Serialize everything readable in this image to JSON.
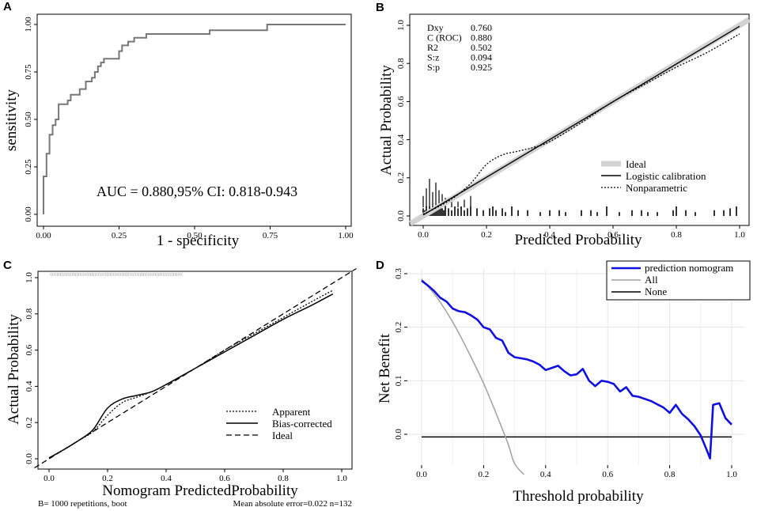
{
  "chart_data": [
    {
      "panel": "A",
      "type": "line",
      "title": "",
      "xlabel": "1 - specificity",
      "ylabel": "sensitivity",
      "xlim": [
        0,
        1
      ],
      "ylim": [
        0,
        1
      ],
      "xticks": [
        "0.00",
        "0.25",
        "0.50",
        "0.75",
        "1.00"
      ],
      "yticks": [
        "0.00",
        "0.25",
        "0.50",
        "0.75",
        "1.00"
      ],
      "annotation": "AUC = 0.880,95% CI: 0.818-0.943",
      "series": [
        {
          "name": "ROC",
          "color": "#777777",
          "x": [
            0,
            0,
            0.01,
            0.01,
            0.02,
            0.02,
            0.03,
            0.03,
            0.04,
            0.04,
            0.05,
            0.05,
            0.08,
            0.08,
            0.09,
            0.09,
            0.12,
            0.12,
            0.14,
            0.14,
            0.16,
            0.16,
            0.17,
            0.17,
            0.18,
            0.18,
            0.19,
            0.19,
            0.2,
            0.2,
            0.25,
            0.25,
            0.26,
            0.26,
            0.28,
            0.28,
            0.3,
            0.3,
            0.34,
            0.34,
            0.55,
            0.55,
            0.74,
            0.74,
            1
          ],
          "y": [
            0,
            0.2,
            0.2,
            0.32,
            0.32,
            0.42,
            0.42,
            0.47,
            0.47,
            0.5,
            0.5,
            0.58,
            0.58,
            0.6,
            0.6,
            0.63,
            0.63,
            0.66,
            0.66,
            0.7,
            0.7,
            0.72,
            0.72,
            0.75,
            0.75,
            0.78,
            0.78,
            0.8,
            0.8,
            0.82,
            0.82,
            0.86,
            0.86,
            0.89,
            0.89,
            0.91,
            0.91,
            0.93,
            0.93,
            0.95,
            0.95,
            0.97,
            0.97,
            1,
            1
          ]
        }
      ]
    },
    {
      "panel": "B",
      "type": "line",
      "xlabel": "Predicted Probability",
      "ylabel": "Actual Probability",
      "xlim": [
        0,
        1
      ],
      "ylim": [
        0,
        1
      ],
      "xticks": [
        "0.0",
        "0.2",
        "0.4",
        "0.6",
        "0.8",
        "1.0"
      ],
      "yticks": [
        "0.0",
        "0.2",
        "0.4",
        "0.6",
        "0.8",
        "1.0"
      ],
      "stats": [
        {
          "label": "Dxy",
          "value": "0.760"
        },
        {
          "label": "C (ROC)",
          "value": "0.880"
        },
        {
          "label": "R2",
          "value": "0.502"
        },
        {
          "label": "S:z",
          "value": "0.094"
        },
        {
          "label": "S:p",
          "value": "0.925"
        }
      ],
      "legend": [
        "Ideal",
        "Logistic calibration",
        "Nonparametric"
      ],
      "series": [
        {
          "name": "Ideal",
          "x": [
            0,
            1
          ],
          "y": [
            0,
            1
          ]
        },
        {
          "name": "Logistic calibration",
          "x": [
            0,
            1
          ],
          "y": [
            0.005,
            0.995
          ]
        },
        {
          "name": "Nonparametric",
          "x": [
            0,
            0.05,
            0.1,
            0.15,
            0.2,
            0.25,
            0.3,
            0.35,
            0.4,
            0.5,
            0.6,
            0.7,
            0.8,
            0.9,
            1.0
          ],
          "y": [
            0.01,
            0.05,
            0.1,
            0.17,
            0.27,
            0.32,
            0.34,
            0.36,
            0.39,
            0.49,
            0.6,
            0.69,
            0.78,
            0.86,
            0.955
          ]
        }
      ],
      "rug_top": [
        0.0,
        0.01,
        0.02,
        0.03,
        0.04,
        0.05,
        0.06,
        0.07,
        0.09,
        0.11,
        0.13,
        0.15
      ],
      "rug_top_heights": [
        0.06,
        0.1,
        0.15,
        0.08,
        0.13,
        0.09,
        0.07,
        0.05,
        0.04,
        0.03,
        0.04,
        0.06
      ],
      "rug_bottom": [
        0.0,
        0.005,
        0.01,
        0.015,
        0.02,
        0.025,
        0.03,
        0.035,
        0.04,
        0.045,
        0.05,
        0.055,
        0.06,
        0.065,
        0.07,
        0.08,
        0.09,
        0.1,
        0.11,
        0.12,
        0.13,
        0.14,
        0.15,
        0.17,
        0.19,
        0.21,
        0.22,
        0.23,
        0.25,
        0.26,
        0.28,
        0.3,
        0.33,
        0.37,
        0.4,
        0.43,
        0.45,
        0.5,
        0.53,
        0.55,
        0.58,
        0.62,
        0.66,
        0.69,
        0.71,
        0.74,
        0.79,
        0.8,
        0.83,
        0.86,
        0.92,
        0.95,
        0.97,
        0.99
      ],
      "rug_bottom_heights": [
        0.04,
        0.03,
        0.05,
        0.03,
        0.05,
        0.04,
        0.05,
        0.04,
        0.05,
        0.03,
        0.04,
        0.05,
        0.04,
        0.03,
        0.05,
        0.04,
        0.03,
        0.05,
        0.04,
        0.05,
        0.03,
        0.04,
        0.05,
        0.04,
        0.03,
        0.04,
        0.05,
        0.03,
        0.04,
        0.02,
        0.05,
        0.03,
        0.03,
        0.02,
        0.03,
        0.03,
        0.02,
        0.03,
        0.03,
        0.02,
        0.05,
        0.02,
        0.03,
        0.03,
        0.02,
        0.02,
        0.03,
        0.05,
        0.03,
        0.02,
        0.03,
        0.03,
        0.04,
        0.05
      ]
    },
    {
      "panel": "C",
      "type": "line",
      "xlabel": "Nomogram PredictedProbability",
      "ylabel": "Actual Probability",
      "xlim": [
        -0.05,
        1.05
      ],
      "ylim": [
        -0.03,
        1.05
      ],
      "xticks": [
        "0.0",
        "0.2",
        "0.4",
        "0.6",
        "0.8",
        "1.0"
      ],
      "yticks": [
        "0.0",
        "0.2",
        "0.4",
        "0.6",
        "0.8",
        "1.0"
      ],
      "legend": [
        "Apparent",
        "Bias-corrected",
        "Ideal"
      ],
      "footnote_left": "B= 1000 repetitions, boot",
      "footnote_right": "Mean absolute error=0.022 n=132",
      "series": [
        {
          "name": "Apparent",
          "x": [
            0,
            0.05,
            0.1,
            0.15,
            0.2,
            0.25,
            0.3,
            0.35,
            0.4,
            0.5,
            0.6,
            0.7,
            0.8,
            0.9,
            0.97
          ],
          "y": [
            0.005,
            0.05,
            0.1,
            0.15,
            0.24,
            0.31,
            0.34,
            0.37,
            0.41,
            0.5,
            0.6,
            0.69,
            0.78,
            0.87,
            0.93
          ]
        },
        {
          "name": "Bias-corrected",
          "x": [
            0,
            0.05,
            0.1,
            0.15,
            0.2,
            0.25,
            0.3,
            0.35,
            0.4,
            0.5,
            0.6,
            0.7,
            0.8,
            0.9,
            0.97
          ],
          "y": [
            0.005,
            0.05,
            0.1,
            0.16,
            0.28,
            0.33,
            0.35,
            0.37,
            0.41,
            0.5,
            0.59,
            0.68,
            0.77,
            0.85,
            0.91
          ]
        },
        {
          "name": "Ideal",
          "x": [
            -0.05,
            1.05
          ],
          "y": [
            -0.05,
            1.05
          ]
        }
      ]
    },
    {
      "panel": "D",
      "type": "line",
      "xlabel": "Threshold probability",
      "ylabel": "Net Benefit",
      "xlim": [
        -0.02,
        1.02
      ],
      "ylim": [
        -0.07,
        0.3
      ],
      "xticks": [
        "0.0",
        "0.2",
        "0.4",
        "0.6",
        "0.8",
        "1.0"
      ],
      "xtick_values": [
        0,
        0.2,
        0.4,
        0.6,
        0.8,
        1.0
      ],
      "yticks": [
        "0.0",
        "0.1",
        "0.2",
        "0.3"
      ],
      "ytick_values": [
        0,
        0.1,
        0.2,
        0.3
      ],
      "legend": [
        "prediction nomogram",
        "All",
        "None"
      ],
      "series": [
        {
          "name": "prediction nomogram",
          "color": "#1010e0",
          "x": [
            0,
            0.02,
            0.04,
            0.06,
            0.08,
            0.1,
            0.12,
            0.14,
            0.16,
            0.18,
            0.2,
            0.22,
            0.24,
            0.26,
            0.28,
            0.3,
            0.32,
            0.34,
            0.36,
            0.38,
            0.4,
            0.42,
            0.44,
            0.46,
            0.48,
            0.5,
            0.52,
            0.54,
            0.56,
            0.58,
            0.6,
            0.62,
            0.64,
            0.66,
            0.68,
            0.7,
            0.72,
            0.74,
            0.76,
            0.78,
            0.8,
            0.82,
            0.84,
            0.86,
            0.88,
            0.9,
            0.92,
            0.93,
            0.94,
            0.96,
            0.98,
            1.0
          ],
          "y": [
            0.287,
            0.278,
            0.268,
            0.255,
            0.248,
            0.235,
            0.23,
            0.228,
            0.222,
            0.214,
            0.2,
            0.196,
            0.18,
            0.175,
            0.152,
            0.144,
            0.142,
            0.14,
            0.136,
            0.13,
            0.12,
            0.124,
            0.128,
            0.118,
            0.11,
            0.112,
            0.122,
            0.1,
            0.09,
            0.1,
            0.098,
            0.094,
            0.08,
            0.088,
            0.072,
            0.07,
            0.066,
            0.062,
            0.056,
            0.05,
            0.04,
            0.055,
            0.038,
            0.028,
            0.015,
            -0.002,
            -0.03,
            -0.045,
            0.055,
            0.058,
            0.03,
            0.018
          ]
        },
        {
          "name": "All",
          "color": "#a0a0a0",
          "x": [
            0,
            0.05,
            0.1,
            0.15,
            0.2,
            0.25,
            0.28,
            0.3,
            0.33
          ],
          "y": [
            0.29,
            0.255,
            0.21,
            0.155,
            0.095,
            0.025,
            -0.02,
            -0.055,
            -0.075
          ]
        },
        {
          "name": "None",
          "color": "#000000",
          "x": [
            0,
            1.0
          ],
          "y": [
            -0.005,
            -0.005
          ]
        }
      ]
    }
  ]
}
